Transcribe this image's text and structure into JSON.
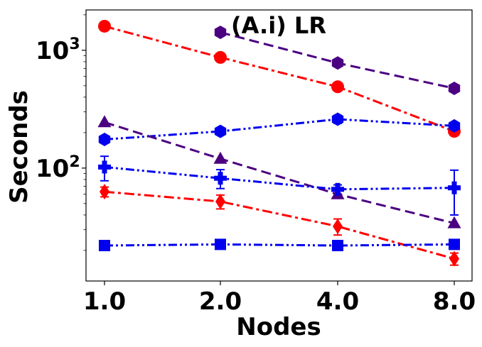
{
  "chart_data": {
    "type": "line",
    "title": "(A.i) LR",
    "xlabel": "Nodes",
    "ylabel": "Seconds",
    "x_scale": "log2",
    "y_scale": "log",
    "grid": false,
    "legend": "none",
    "x_ticks": [
      "1.0",
      "2.0",
      "4.0",
      "8.0"
    ],
    "y_ticks": [
      {
        "value": 100,
        "label": "10",
        "exp": "2"
      },
      {
        "value": 1000,
        "label": "10",
        "exp": "3"
      }
    ],
    "x": [
      1,
      2,
      4,
      8
    ],
    "ylim": [
      11,
      2200
    ],
    "series": [
      {
        "color": "#ff0000",
        "marker": "circle",
        "linestyle": "dashdot",
        "values": [
          1600,
          870,
          490,
          205
        ]
      },
      {
        "color": "#4b0082",
        "marker": "hexagon",
        "linestyle": "dashed",
        "values": [
          null,
          1420,
          780,
          475
        ]
      },
      {
        "color": "#0000ee",
        "marker": "hexagon",
        "linestyle": "dashdotdot",
        "values": [
          175,
          205,
          260,
          228
        ],
        "err": [
          null,
          null,
          20,
          null
        ]
      },
      {
        "color": "#4b0082",
        "marker": "triangle",
        "linestyle": "dashed",
        "values": [
          245,
          120,
          60,
          34
        ]
      },
      {
        "color": "#0000ee",
        "marker": "plus",
        "linestyle": "dashdotdot",
        "values": [
          102,
          82,
          66,
          68
        ],
        "err": [
          24,
          15,
          6,
          28
        ]
      },
      {
        "color": "#ff0000",
        "marker": "diamond",
        "linestyle": "dashdot",
        "values": [
          63,
          52,
          32,
          17
        ],
        "err": [
          6,
          7,
          5,
          2
        ]
      },
      {
        "color": "#0000ee",
        "marker": "square",
        "linestyle": "dashdotdot",
        "values": [
          22,
          22.5,
          22,
          22.5
        ]
      }
    ]
  }
}
